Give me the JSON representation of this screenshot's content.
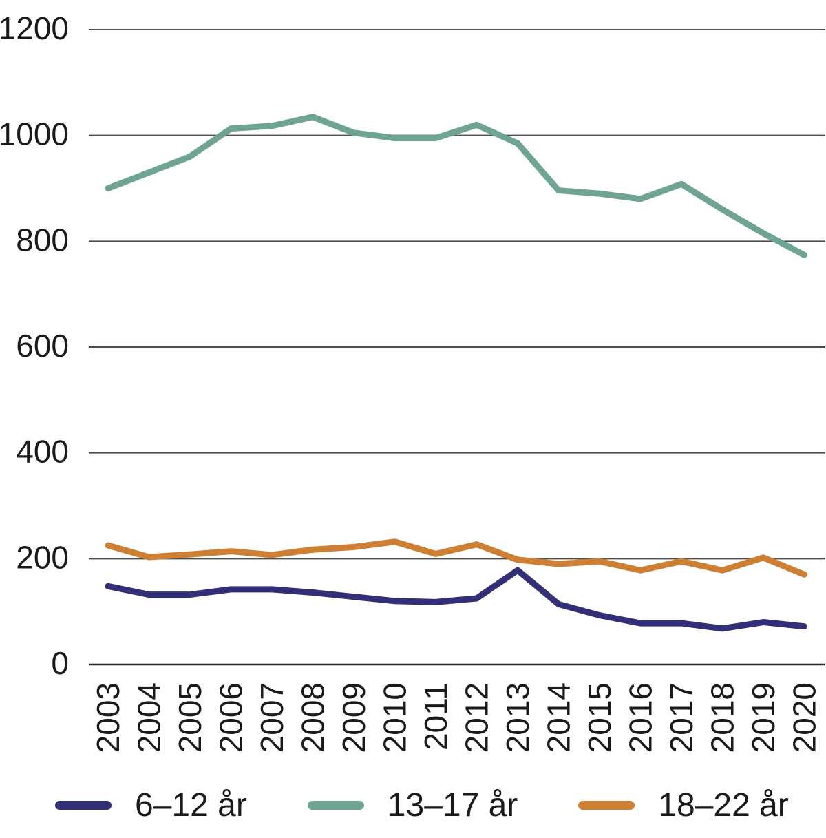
{
  "chart_data": {
    "type": "line",
    "x": [
      2003,
      2004,
      2005,
      2006,
      2007,
      2008,
      2009,
      2010,
      2011,
      2012,
      2013,
      2014,
      2015,
      2016,
      2017,
      2018,
      2019,
      2020
    ],
    "series": [
      {
        "name": "6–12 år",
        "color": "#322f76",
        "values": [
          148,
          132,
          132,
          142,
          142,
          136,
          128,
          120,
          118,
          125,
          178,
          114,
          93,
          78,
          78,
          68,
          80,
          72
        ]
      },
      {
        "name": "13–17 år",
        "color": "#6fa492",
        "values": [
          900,
          930,
          960,
          1013,
          1018,
          1035,
          1005,
          995,
          995,
          1020,
          985,
          896,
          890,
          880,
          908,
          860,
          815,
          774
        ]
      },
      {
        "name": "18–22 år",
        "color": "#cd8033",
        "values": [
          225,
          203,
          208,
          214,
          207,
          217,
          222,
          232,
          209,
          227,
          198,
          190,
          195,
          178,
          195,
          178,
          202,
          170
        ]
      }
    ],
    "title": "",
    "xlabel": "",
    "ylabel": "",
    "ylim": [
      0,
      1200
    ],
    "yticks": [
      0,
      200,
      400,
      600,
      800,
      1000,
      1200
    ],
    "grid": "horizontal",
    "legend_position": "bottom"
  },
  "legend": {
    "items": [
      {
        "label": "6–12 år"
      },
      {
        "label": "13–17 år"
      },
      {
        "label": "18–22 år"
      }
    ]
  },
  "style": {
    "gridline_color": "#4d4d4d",
    "axis_color": "#262626",
    "text_color": "#1a1a1a"
  }
}
